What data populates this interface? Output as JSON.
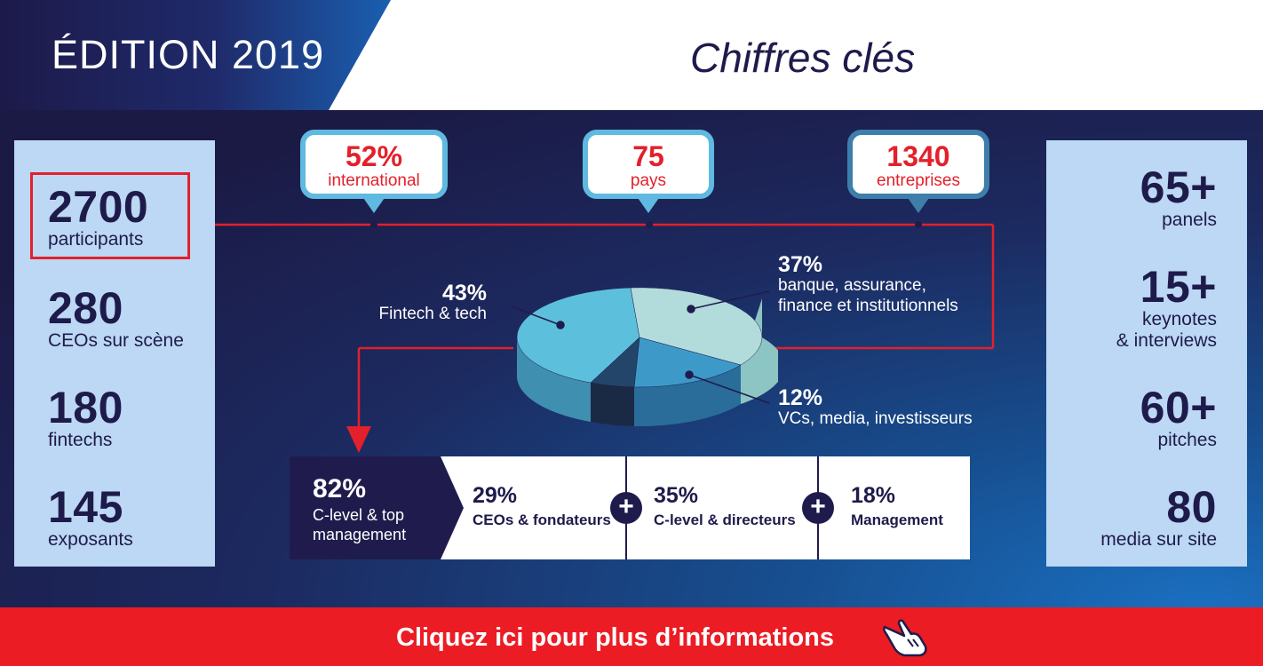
{
  "header": {
    "edition": "ÉDITION 2019",
    "title": "Chiffres clés"
  },
  "left_stats": [
    {
      "num": "2700",
      "label": "participants"
    },
    {
      "num": "280",
      "label": "CEOs sur scène"
    },
    {
      "num": "180",
      "label": "fintechs"
    },
    {
      "num": "145",
      "label": "exposants"
    }
  ],
  "right_stats": [
    {
      "num": "65+",
      "label": "panels"
    },
    {
      "num": "15+",
      "label1": "keynotes",
      "label2": "& interviews"
    },
    {
      "num": "60+",
      "label": "pitches"
    },
    {
      "num": "80",
      "label": "media sur site"
    }
  ],
  "bubbles": [
    {
      "num": "52%",
      "label": "international"
    },
    {
      "num": "75",
      "label": "pays"
    },
    {
      "num": "1340",
      "label": "entreprises"
    }
  ],
  "pie": {
    "fintech": {
      "num": "43%",
      "label": "Fintech & tech"
    },
    "banque": {
      "num": "37%",
      "label1": "banque, assurance,",
      "label2": "finance et institutionnels"
    },
    "vcs": {
      "num": "12%",
      "label": "VCs, media, investisseurs"
    }
  },
  "management": {
    "main": {
      "num": "82%",
      "label1": "C-level & top",
      "label2": "management"
    },
    "items": [
      {
        "num": "29%",
        "label": "CEOs & fondateurs"
      },
      {
        "num": "35%",
        "label": "C-level & directeurs"
      },
      {
        "num": "18%",
        "label": "Management"
      }
    ],
    "plus": "+"
  },
  "footer": {
    "cta": "Cliquez ici pour plus d’informations"
  },
  "colors": {
    "accent_red": "#ec1c24",
    "navy": "#1e1b4b",
    "light_blue": "#bcd8f4",
    "cyan": "#5fb9e0"
  }
}
